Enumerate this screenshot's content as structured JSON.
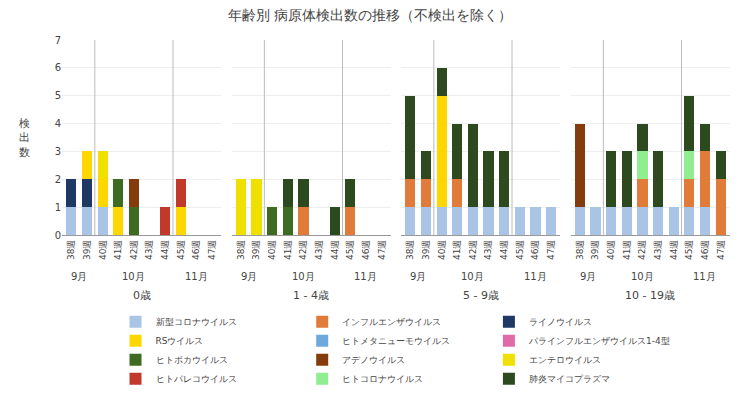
{
  "chart_data": [
    {
      "type": "bar",
      "stacked": true,
      "title": "年齢別 病原体検出数の推移（不検出を除く）",
      "ylabel": "検\n出\n数",
      "xlabel": "0歳",
      "legend": "bottom",
      "grid": true,
      "categories": [
        "38週",
        "39週",
        "40週",
        "41週",
        "42週",
        "43週",
        "44週",
        "45週",
        "46週",
        "47週"
      ],
      "annotations": [
        {
          "text": "9月",
          "categories": [
            "38週",
            "39週"
          ]
        },
        {
          "text": "10月",
          "categories": [
            "40週",
            "41週",
            "42週",
            "43週",
            "44週"
          ]
        },
        {
          "text": "11月",
          "categories": [
            "45週",
            "46週",
            "47週"
          ]
        }
      ],
      "ylim": [
        0,
        7
      ],
      "yticks": [
        0,
        1,
        2,
        3,
        4,
        5,
        6,
        7
      ],
      "series": [
        {
          "name": "新型コロナウイルス",
          "color": "#a9c4e4",
          "values": [
            1,
            1,
            1,
            0,
            0,
            0,
            0,
            0,
            0,
            0
          ]
        },
        {
          "name": "インフルエンザウイルス",
          "color": "#e07b39",
          "values": [
            0,
            0,
            0,
            0,
            0,
            0,
            0,
            0,
            0,
            0
          ]
        },
        {
          "name": "ライノウイルス",
          "color": "#1f3864",
          "values": [
            1,
            1,
            0,
            0,
            0,
            0,
            0,
            0,
            0,
            0
          ]
        },
        {
          "name": "RSウイルス",
          "color": "#ffd700",
          "values": [
            0,
            1,
            1,
            1,
            0,
            0,
            0,
            1,
            0,
            0
          ]
        },
        {
          "name": "ヒトメタニューモウイルス",
          "color": "#6fa8dc",
          "values": [
            0,
            0,
            0,
            0,
            0,
            0,
            0,
            0,
            0,
            0
          ]
        },
        {
          "name": "パラインフルエンザウイルス1-4型",
          "color": "#e06ba8",
          "values": [
            0,
            0,
            0,
            0,
            0,
            0,
            0,
            0,
            0,
            0
          ]
        },
        {
          "name": "ヒトボカウイルス",
          "color": "#3d6b22",
          "values": [
            0,
            0,
            0,
            1,
            1,
            0,
            0,
            0,
            0,
            0
          ]
        },
        {
          "name": "アデノウイルス",
          "color": "#843c0c",
          "values": [
            0,
            0,
            0,
            0,
            1,
            0,
            0,
            0,
            0,
            0
          ]
        },
        {
          "name": "エンテロウイルス",
          "color": "#f0e000",
          "values": [
            0,
            0,
            1,
            0,
            0,
            0,
            0,
            0,
            0,
            0
          ]
        },
        {
          "name": "ヒトパレコウイルス",
          "color": "#c0392b",
          "values": [
            0,
            0,
            0,
            0,
            0,
            0,
            1,
            1,
            0,
            0
          ]
        },
        {
          "name": "ヒトコロナウイルス",
          "color": "#90ee90",
          "values": [
            0,
            0,
            0,
            0,
            0,
            0,
            0,
            0,
            0,
            0
          ]
        },
        {
          "name": "肺炎マイコプラズマ",
          "color": "#2d4a1e",
          "values": [
            0,
            0,
            0,
            0,
            0,
            0,
            0,
            0,
            0,
            0
          ]
        }
      ]
    },
    {
      "type": "bar",
      "stacked": true,
      "xlabel": "1 - 4歳",
      "grid": true,
      "tick_labels": "x",
      "categories": [
        "38週",
        "39週",
        "40週",
        "41週",
        "42週",
        "43週",
        "44週",
        "45週",
        "46週",
        "47週"
      ],
      "annotations": [
        {
          "text": "9月",
          "categories": [
            "38週",
            "39週"
          ]
        },
        {
          "text": "10月",
          "categories": [
            "40週",
            "41週",
            "42週",
            "43週",
            "44週"
          ]
        },
        {
          "text": "11月",
          "categories": [
            "45週",
            "46週",
            "47週"
          ]
        }
      ],
      "ylim": [
        0,
        7
      ],
      "yticks": [
        0,
        1,
        2,
        3,
        4,
        5,
        6,
        7
      ],
      "series": [
        {
          "name": "新型コロナウイルス",
          "color": "#a9c4e4",
          "values": [
            0,
            0,
            0,
            0,
            0,
            0,
            0,
            0,
            0,
            0
          ]
        },
        {
          "name": "インフルエンザウイルス",
          "color": "#e07b39",
          "values": [
            0,
            0,
            0,
            0,
            1,
            0,
            0,
            1,
            0,
            0
          ]
        },
        {
          "name": "ライノウイルス",
          "color": "#1f3864",
          "values": [
            0,
            0,
            0,
            0,
            0,
            0,
            0,
            0,
            0,
            0
          ]
        },
        {
          "name": "RSウイルス",
          "color": "#ffd700",
          "values": [
            0,
            0,
            0,
            0,
            0,
            0,
            0,
            0,
            0,
            0
          ]
        },
        {
          "name": "ヒトメタニューモウイルス",
          "color": "#6fa8dc",
          "values": [
            0,
            0,
            0,
            0,
            0,
            0,
            0,
            0,
            0,
            0
          ]
        },
        {
          "name": "パラインフルエンザウイルス1-4型",
          "color": "#e06ba8",
          "values": [
            0,
            0,
            0,
            0,
            0,
            0,
            0,
            0,
            0,
            0
          ]
        },
        {
          "name": "ヒトボカウイルス",
          "color": "#3d6b22",
          "values": [
            0,
            0,
            1,
            1,
            0,
            0,
            0,
            0,
            0,
            0
          ]
        },
        {
          "name": "アデノウイルス",
          "color": "#843c0c",
          "values": [
            0,
            0,
            0,
            0,
            0,
            0,
            0,
            0,
            0,
            0
          ]
        },
        {
          "name": "エンテロウイルス",
          "color": "#f0e000",
          "values": [
            2,
            2,
            0,
            0,
            0,
            0,
            0,
            0,
            0,
            0
          ]
        },
        {
          "name": "ヒトパレコウイルス",
          "color": "#c0392b",
          "values": [
            0,
            0,
            0,
            0,
            0,
            0,
            0,
            0,
            0,
            0
          ]
        },
        {
          "name": "ヒトコロナウイルス",
          "color": "#90ee90",
          "values": [
            0,
            0,
            0,
            0,
            0,
            0,
            0,
            0,
            0,
            0
          ]
        },
        {
          "name": "肺炎マイコプラズマ",
          "color": "#2d4a1e",
          "values": [
            0,
            0,
            0,
            1,
            1,
            0,
            1,
            1,
            0,
            0
          ]
        }
      ]
    },
    {
      "type": "bar",
      "stacked": true,
      "xlabel": "5 - 9歳",
      "grid": true,
      "tick_labels": "x",
      "categories": [
        "38週",
        "39週",
        "40週",
        "41週",
        "42週",
        "43週",
        "44週",
        "45週",
        "46週",
        "47週"
      ],
      "annotations": [
        {
          "text": "9月",
          "categories": [
            "38週",
            "39週"
          ]
        },
        {
          "text": "10月",
          "categories": [
            "40週",
            "41週",
            "42週",
            "43週",
            "44週"
          ]
        },
        {
          "text": "11月",
          "categories": [
            "45週",
            "46週",
            "47週"
          ]
        }
      ],
      "ylim": [
        0,
        7
      ],
      "yticks": [
        0,
        1,
        2,
        3,
        4,
        5,
        6,
        7
      ],
      "series": [
        {
          "name": "新型コロナウイルス",
          "color": "#a9c4e4",
          "values": [
            1,
            1,
            1,
            1,
            1,
            1,
            1,
            1,
            1,
            1
          ]
        },
        {
          "name": "インフルエンザウイルス",
          "color": "#e07b39",
          "values": [
            1,
            1,
            0,
            1,
            0,
            0,
            0,
            0,
            0,
            0
          ]
        },
        {
          "name": "ライノウイルス",
          "color": "#1f3864",
          "values": [
            0,
            0,
            0,
            0,
            0,
            0,
            0,
            0,
            0,
            0
          ]
        },
        {
          "name": "RSウイルス",
          "color": "#ffd700",
          "values": [
            0,
            0,
            4,
            0,
            0,
            0,
            0,
            0,
            0,
            0
          ]
        },
        {
          "name": "ヒトメタニューモウイルス",
          "color": "#6fa8dc",
          "values": [
            0,
            0,
            0,
            0,
            0,
            0,
            0,
            0,
            0,
            0
          ]
        },
        {
          "name": "パラインフルエンザウイルス1-4型",
          "color": "#e06ba8",
          "values": [
            0,
            0,
            0,
            0,
            0,
            0,
            0,
            0,
            0,
            0
          ]
        },
        {
          "name": "ヒトボカウイルス",
          "color": "#3d6b22",
          "values": [
            0,
            0,
            0,
            0,
            0,
            0,
            0,
            0,
            0,
            0
          ]
        },
        {
          "name": "アデノウイルス",
          "color": "#843c0c",
          "values": [
            0,
            0,
            0,
            0,
            0,
            0,
            0,
            0,
            0,
            0
          ]
        },
        {
          "name": "エンテロウイルス",
          "color": "#f0e000",
          "values": [
            0,
            0,
            0,
            0,
            0,
            0,
            0,
            0,
            0,
            0
          ]
        },
        {
          "name": "ヒトパレコウイルス",
          "color": "#c0392b",
          "values": [
            0,
            0,
            0,
            0,
            0,
            0,
            0,
            0,
            0,
            0
          ]
        },
        {
          "name": "ヒトコロナウイルス",
          "color": "#90ee90",
          "values": [
            0,
            0,
            0,
            0,
            0,
            0,
            0,
            0,
            0,
            0
          ]
        },
        {
          "name": "肺炎マイコプラズマ",
          "color": "#2d4a1e",
          "values": [
            3,
            1,
            1,
            2,
            3,
            2,
            2,
            0,
            0,
            0
          ]
        }
      ]
    },
    {
      "type": "bar",
      "stacked": true,
      "xlabel": "10 - 19歳",
      "grid": true,
      "tick_labels": "x",
      "categories": [
        "38週",
        "39週",
        "40週",
        "41週",
        "42週",
        "43週",
        "44週",
        "45週",
        "46週",
        "47週"
      ],
      "annotations": [
        {
          "text": "9月",
          "categories": [
            "38週",
            "39週"
          ]
        },
        {
          "text": "10月",
          "categories": [
            "40週",
            "41週",
            "42週",
            "43週",
            "44週"
          ]
        },
        {
          "text": "11月",
          "categories": [
            "45週",
            "46週",
            "47週"
          ]
        }
      ],
      "ylim": [
        0,
        7
      ],
      "yticks": [
        0,
        1,
        2,
        3,
        4,
        5,
        6,
        7
      ],
      "series": [
        {
          "name": "新型コロナウイルス",
          "color": "#a9c4e4",
          "values": [
            1,
            1,
            1,
            1,
            1,
            1,
            1,
            1,
            1,
            0
          ]
        },
        {
          "name": "インフルエンザウイルス",
          "color": "#e07b39",
          "values": [
            0,
            0,
            0,
            0,
            1,
            0,
            0,
            1,
            2,
            2
          ]
        },
        {
          "name": "ライノウイルス",
          "color": "#1f3864",
          "values": [
            0,
            0,
            0,
            0,
            0,
            0,
            0,
            0,
            0,
            0
          ]
        },
        {
          "name": "RSウイルス",
          "color": "#ffd700",
          "values": [
            0,
            0,
            0,
            0,
            0,
            0,
            0,
            0,
            0,
            0
          ]
        },
        {
          "name": "ヒトメタニューモウイルス",
          "color": "#6fa8dc",
          "values": [
            0,
            0,
            0,
            0,
            0,
            0,
            0,
            0,
            0,
            0
          ]
        },
        {
          "name": "パラインフルエンザウイルス1-4型",
          "color": "#e06ba8",
          "values": [
            0,
            0,
            0,
            0,
            0,
            0,
            0,
            0,
            0,
            0
          ]
        },
        {
          "name": "ヒトボカウイルス",
          "color": "#3d6b22",
          "values": [
            0,
            0,
            0,
            0,
            0,
            0,
            0,
            0,
            0,
            0
          ]
        },
        {
          "name": "アデノウイルス",
          "color": "#843c0c",
          "values": [
            3,
            0,
            0,
            0,
            0,
            0,
            0,
            0,
            0,
            0
          ]
        },
        {
          "name": "エンテロウイルス",
          "color": "#f0e000",
          "values": [
            0,
            0,
            0,
            0,
            0,
            0,
            0,
            0,
            0,
            0
          ]
        },
        {
          "name": "ヒトパレコウイルス",
          "color": "#c0392b",
          "values": [
            0,
            0,
            0,
            0,
            0,
            0,
            0,
            0,
            0,
            0
          ]
        },
        {
          "name": "ヒトコロナウイルス",
          "color": "#90ee90",
          "values": [
            0,
            0,
            0,
            0,
            1,
            0,
            0,
            1,
            0,
            0
          ]
        },
        {
          "name": "肺炎マイコプラズマ",
          "color": "#2d4a1e",
          "values": [
            0,
            0,
            2,
            2,
            1,
            2,
            0,
            2,
            1,
            1
          ]
        }
      ]
    }
  ]
}
